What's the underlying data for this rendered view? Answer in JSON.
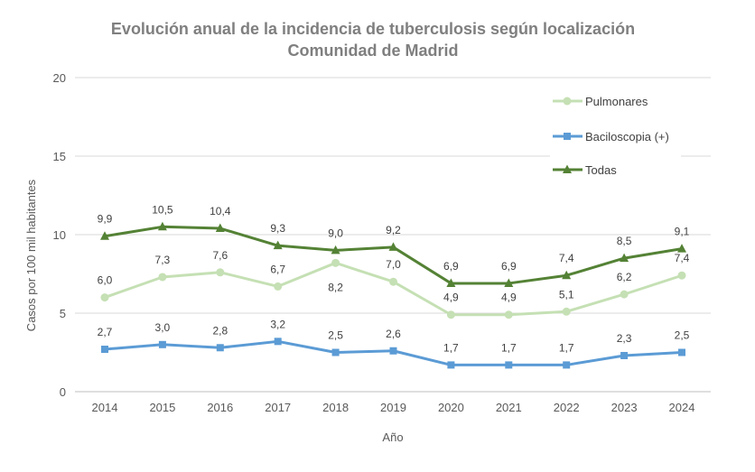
{
  "chart_data": {
    "type": "line",
    "title_line1": "Evolución anual de la incidencia de tuberculosis según localización",
    "title_line2": "Comunidad de Madrid",
    "xlabel": "Año",
    "ylabel": "Casos por 100 mil  habitantes",
    "ylim": [
      0,
      20
    ],
    "yticks": [
      "0",
      "5",
      "10",
      "15",
      "20"
    ],
    "ytick_values": [
      0,
      5,
      10,
      15,
      20
    ],
    "categories": [
      "2014",
      "2015",
      "2016",
      "2017",
      "2018",
      "2019",
      "2020",
      "2021",
      "2022",
      "2023",
      "2024"
    ],
    "grid": true,
    "legend_position": "right",
    "series": [
      {
        "name": "Pulmonares",
        "color": "#c5e0b4",
        "marker": "circle",
        "values": [
          6.0,
          7.3,
          7.6,
          6.7,
          8.2,
          7.0,
          4.9,
          4.9,
          5.1,
          6.2,
          7.4
        ],
        "labels": [
          "6,0",
          "7,3",
          "7,6",
          "6,7",
          "8,2",
          "7,0",
          "4,9",
          "4,9",
          "5,1",
          "6,2",
          "7,4"
        ],
        "label_pos": [
          "above",
          "above",
          "above",
          "above",
          "below",
          "above",
          "above",
          "above",
          "above",
          "above",
          "above"
        ]
      },
      {
        "name": "Baciloscopia (+)",
        "color": "#5b9bd5",
        "marker": "square",
        "values": [
          2.7,
          3.0,
          2.8,
          3.2,
          2.5,
          2.6,
          1.7,
          1.7,
          1.7,
          2.3,
          2.5
        ],
        "labels": [
          "2,7",
          "3,0",
          "2,8",
          "3,2",
          "2,5",
          "2,6",
          "1,7",
          "1,7",
          "1,7",
          "2,3",
          "2,5"
        ],
        "label_pos": [
          "above",
          "above",
          "above",
          "above",
          "above",
          "above",
          "above",
          "above",
          "above",
          "above",
          "above"
        ]
      },
      {
        "name": "Todas",
        "color": "#548235",
        "marker": "triangle",
        "values": [
          9.9,
          10.5,
          10.4,
          9.3,
          9.0,
          9.2,
          6.9,
          6.9,
          7.4,
          8.5,
          9.1
        ],
        "labels": [
          "9,9",
          "10,5",
          "10,4",
          "9,3",
          "9,0",
          "9,2",
          "6,9",
          "6,9",
          "7,4",
          "8,5",
          "9,1"
        ],
        "label_pos": [
          "above",
          "above",
          "above",
          "above",
          "above",
          "above",
          "above",
          "above",
          "above",
          "above",
          "above"
        ]
      }
    ]
  }
}
